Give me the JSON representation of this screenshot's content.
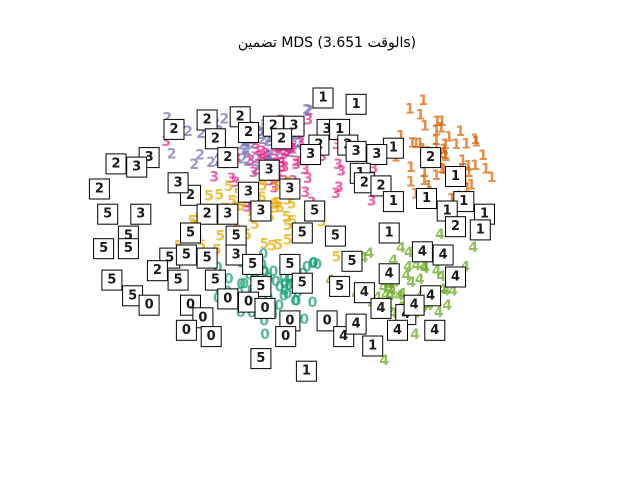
{
  "chart_data": {
    "type": "scatter",
    "title": "تضمين MDS (الوقت 3.651s)",
    "xlabel": "",
    "ylabel": "",
    "axes_visible": false,
    "grid": false,
    "xlim": [
      0,
      1
    ],
    "ylim": [
      0,
      1
    ],
    "colors": {
      "0": "#1b9e77",
      "1": "#d95f02",
      "2": "#7570b3",
      "3": "#e7298a",
      "4": "#66a61e",
      "5": "#e6ab02"
    },
    "clusters": [
      {
        "digit": "0",
        "center": [
          0.38,
          0.32
        ],
        "spread": [
          0.065,
          0.055
        ],
        "count": 60
      },
      {
        "digit": "1",
        "center": [
          0.78,
          0.72
        ],
        "spread": [
          0.06,
          0.08
        ],
        "count": 55
      },
      {
        "digit": "2",
        "center": [
          0.33,
          0.8
        ],
        "spread": [
          0.09,
          0.06
        ],
        "count": 55
      },
      {
        "digit": "3",
        "center": [
          0.4,
          0.72
        ],
        "spread": [
          0.08,
          0.06
        ],
        "count": 60
      },
      {
        "digit": "4",
        "center": [
          0.72,
          0.33
        ],
        "spread": [
          0.07,
          0.07
        ],
        "count": 55
      },
      {
        "digit": "5",
        "center": [
          0.33,
          0.55
        ],
        "spread": [
          0.09,
          0.05
        ],
        "count": 55
      }
    ],
    "thumbnails": [
      {
        "digit": "1",
        "x": 0.5,
        "y": 0.93
      },
      {
        "digit": "1",
        "x": 0.58,
        "y": 0.91
      },
      {
        "digit": "2",
        "x": 0.3,
        "y": 0.87
      },
      {
        "digit": "2",
        "x": 0.22,
        "y": 0.86
      },
      {
        "digit": "2",
        "x": 0.38,
        "y": 0.84
      },
      {
        "digit": "3",
        "x": 0.43,
        "y": 0.84
      },
      {
        "digit": "3",
        "x": 0.51,
        "y": 0.83
      },
      {
        "digit": "1",
        "x": 0.54,
        "y": 0.83
      },
      {
        "digit": "2",
        "x": 0.14,
        "y": 0.83
      },
      {
        "digit": "2",
        "x": 0.32,
        "y": 0.82
      },
      {
        "digit": "2",
        "x": 0.24,
        "y": 0.8
      },
      {
        "digit": "2",
        "x": 0.4,
        "y": 0.8
      },
      {
        "digit": "2",
        "x": 0.49,
        "y": 0.78
      },
      {
        "digit": "2",
        "x": 0.56,
        "y": 0.78
      },
      {
        "digit": "1",
        "x": 0.67,
        "y": 0.77
      },
      {
        "digit": "3",
        "x": 0.58,
        "y": 0.76
      },
      {
        "digit": "3",
        "x": 0.63,
        "y": 0.75
      },
      {
        "digit": "3",
        "x": 0.47,
        "y": 0.75
      },
      {
        "digit": "3",
        "x": 0.08,
        "y": 0.74
      },
      {
        "digit": "2",
        "x": 0.27,
        "y": 0.74
      },
      {
        "digit": "2",
        "x": 0.76,
        "y": 0.74
      },
      {
        "digit": "1",
        "x": 0.59,
        "y": 0.69
      },
      {
        "digit": "3",
        "x": 0.37,
        "y": 0.7
      },
      {
        "digit": "2",
        "x": 0.0,
        "y": 0.72
      },
      {
        "digit": "3",
        "x": 0.05,
        "y": 0.71
      },
      {
        "digit": "2",
        "x": 0.6,
        "y": 0.66
      },
      {
        "digit": "1",
        "x": 0.82,
        "y": 0.68
      },
      {
        "digit": "3",
        "x": 0.32,
        "y": 0.63
      },
      {
        "digit": "3",
        "x": 0.42,
        "y": 0.64
      },
      {
        "digit": "2",
        "x": -0.04,
        "y": 0.64
      },
      {
        "digit": "2",
        "x": 0.18,
        "y": 0.62
      },
      {
        "digit": "3",
        "x": 0.15,
        "y": 0.66
      },
      {
        "digit": "2",
        "x": 0.64,
        "y": 0.65
      },
      {
        "digit": "1",
        "x": 0.67,
        "y": 0.6
      },
      {
        "digit": "1",
        "x": 0.75,
        "y": 0.61
      },
      {
        "digit": "1",
        "x": 0.84,
        "y": 0.6
      },
      {
        "digit": "1",
        "x": 0.8,
        "y": 0.57
      },
      {
        "digit": "1",
        "x": 0.89,
        "y": 0.56
      },
      {
        "digit": "3",
        "x": 0.27,
        "y": 0.56
      },
      {
        "digit": "2",
        "x": 0.22,
        "y": 0.56
      },
      {
        "digit": "5",
        "x": -0.02,
        "y": 0.56
      },
      {
        "digit": "3",
        "x": 0.06,
        "y": 0.56
      },
      {
        "digit": "3",
        "x": 0.35,
        "y": 0.57
      },
      {
        "digit": "5",
        "x": 0.48,
        "y": 0.57
      },
      {
        "digit": "2",
        "x": 0.82,
        "y": 0.52
      },
      {
        "digit": "5",
        "x": 0.03,
        "y": 0.49
      },
      {
        "digit": "5",
        "x": 0.18,
        "y": 0.5
      },
      {
        "digit": "5",
        "x": 0.29,
        "y": 0.49
      },
      {
        "digit": "5",
        "x": 0.45,
        "y": 0.5
      },
      {
        "digit": "5",
        "x": 0.53,
        "y": 0.49
      },
      {
        "digit": "1",
        "x": 0.66,
        "y": 0.5
      },
      {
        "digit": "1",
        "x": 0.88,
        "y": 0.51
      },
      {
        "digit": "5",
        "x": -0.03,
        "y": 0.45
      },
      {
        "digit": "5",
        "x": 0.03,
        "y": 0.45
      },
      {
        "digit": "5",
        "x": 0.13,
        "y": 0.42
      },
      {
        "digit": "5",
        "x": 0.17,
        "y": 0.43
      },
      {
        "digit": "5",
        "x": 0.22,
        "y": 0.42
      },
      {
        "digit": "3",
        "x": 0.29,
        "y": 0.43
      },
      {
        "digit": "5",
        "x": 0.33,
        "y": 0.4
      },
      {
        "digit": "5",
        "x": 0.42,
        "y": 0.4
      },
      {
        "digit": "5",
        "x": 0.57,
        "y": 0.41
      },
      {
        "digit": "4",
        "x": 0.74,
        "y": 0.44
      },
      {
        "digit": "4",
        "x": 0.79,
        "y": 0.43
      },
      {
        "digit": "2",
        "x": 0.1,
        "y": 0.38
      },
      {
        "digit": "4",
        "x": 0.66,
        "y": 0.37
      },
      {
        "digit": "4",
        "x": 0.82,
        "y": 0.36
      },
      {
        "digit": "5",
        "x": -0.01,
        "y": 0.35
      },
      {
        "digit": "5",
        "x": 0.15,
        "y": 0.35
      },
      {
        "digit": "5",
        "x": 0.24,
        "y": 0.35
      },
      {
        "digit": "5",
        "x": 0.35,
        "y": 0.33
      },
      {
        "digit": "5",
        "x": 0.45,
        "y": 0.34
      },
      {
        "digit": "5",
        "x": 0.54,
        "y": 0.33
      },
      {
        "digit": "4",
        "x": 0.6,
        "y": 0.31
      },
      {
        "digit": "4",
        "x": 0.76,
        "y": 0.3
      },
      {
        "digit": "5",
        "x": 0.04,
        "y": 0.3
      },
      {
        "digit": "0",
        "x": 0.08,
        "y": 0.27
      },
      {
        "digit": "0",
        "x": 0.18,
        "y": 0.27
      },
      {
        "digit": "0",
        "x": 0.27,
        "y": 0.29
      },
      {
        "digit": "0",
        "x": 0.21,
        "y": 0.23
      },
      {
        "digit": "0",
        "x": 0.32,
        "y": 0.28
      },
      {
        "digit": "0",
        "x": 0.36,
        "y": 0.26
      },
      {
        "digit": "4",
        "x": 0.64,
        "y": 0.26
      },
      {
        "digit": "4",
        "x": 0.7,
        "y": 0.24
      },
      {
        "digit": "4",
        "x": 0.72,
        "y": 0.27
      },
      {
        "digit": "0",
        "x": 0.42,
        "y": 0.22
      },
      {
        "digit": "0",
        "x": 0.51,
        "y": 0.22
      },
      {
        "digit": "0",
        "x": 0.17,
        "y": 0.19
      },
      {
        "digit": "0",
        "x": 0.23,
        "y": 0.17
      },
      {
        "digit": "0",
        "x": 0.41,
        "y": 0.17
      },
      {
        "digit": "4",
        "x": 0.55,
        "y": 0.17
      },
      {
        "digit": "4",
        "x": 0.58,
        "y": 0.21
      },
      {
        "digit": "4",
        "x": 0.68,
        "y": 0.19
      },
      {
        "digit": "4",
        "x": 0.77,
        "y": 0.19
      },
      {
        "digit": "1",
        "x": 0.62,
        "y": 0.14
      },
      {
        "digit": "5",
        "x": 0.35,
        "y": 0.1
      },
      {
        "digit": "1",
        "x": 0.46,
        "y": 0.06
      }
    ]
  }
}
